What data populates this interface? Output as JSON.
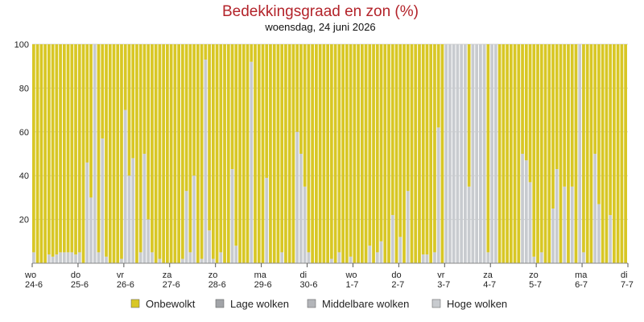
{
  "colors": {
    "clear": "#d8c725",
    "low": "#a2a4a8",
    "mid": "#b3b5b9",
    "high": "#c8cbcf",
    "title": "#b3232a",
    "grid": "#d0d0d0"
  },
  "chart_data": {
    "type": "bar",
    "stacked": true,
    "title": "Bedekkingsgraad en zon (%)",
    "subtitle": "woensdag, 24 juni 2026",
    "ylim": [
      0,
      100
    ],
    "yticks": [
      20,
      40,
      60,
      80,
      100
    ],
    "x_tick_labels": [
      {
        "index": 0,
        "day": "wo",
        "date": "24-6"
      },
      {
        "index": 12,
        "day": "do",
        "date": "25-6"
      },
      {
        "index": 24,
        "day": "vr",
        "date": "26-6"
      },
      {
        "index": 36,
        "day": "za",
        "date": "27-6"
      },
      {
        "index": 48,
        "day": "zo",
        "date": "28-6"
      },
      {
        "index": 60,
        "day": "ma",
        "date": "29-6"
      },
      {
        "index": 72,
        "day": "di",
        "date": "30-6"
      },
      {
        "index": 84,
        "day": "wo",
        "date": "1-7"
      },
      {
        "index": 96,
        "day": "do",
        "date": "2-7"
      },
      {
        "index": 108,
        "day": "vr",
        "date": "3-7"
      },
      {
        "index": 120,
        "day": "za",
        "date": "4-7"
      },
      {
        "index": 132,
        "day": "zo",
        "date": "5-7"
      },
      {
        "index": 144,
        "day": "ma",
        "date": "6-7"
      },
      {
        "index": 156,
        "day": "di",
        "date": "7-7"
      }
    ],
    "legend": [
      "Onbewolkt",
      "Lage wolken",
      "Middelbare wolken",
      "Hoge wolken"
    ],
    "series": [
      {
        "name": "Hoge wolken",
        "values": [
          5,
          0,
          0,
          0,
          4,
          3,
          4,
          5,
          5,
          5,
          5,
          4,
          5,
          0,
          46,
          30,
          100,
          5,
          57,
          3,
          0,
          0,
          0,
          2,
          70,
          40,
          48,
          0,
          5,
          50,
          20,
          5,
          0,
          2,
          0,
          0,
          0,
          0,
          0,
          2,
          33,
          5,
          40,
          0,
          2,
          93,
          15,
          2,
          0,
          5,
          0,
          0,
          43,
          8,
          0,
          0,
          0,
          92,
          0,
          0,
          0,
          39,
          0,
          0,
          0,
          5,
          0,
          0,
          0,
          60,
          50,
          35,
          5,
          0,
          0,
          0,
          0,
          0,
          2,
          0,
          5,
          0,
          0,
          3,
          0,
          0,
          0,
          0,
          8,
          0,
          5,
          10,
          0,
          0,
          22,
          0,
          12,
          0,
          33,
          0,
          0,
          0,
          4,
          4,
          0,
          5,
          62,
          0,
          100,
          100,
          100,
          100,
          100,
          100,
          35,
          100,
          100,
          100,
          100,
          5,
          100,
          100,
          0,
          0,
          0,
          0,
          0,
          0,
          50,
          47,
          37,
          3,
          0,
          5,
          0,
          0,
          25,
          43,
          0,
          35,
          0,
          35,
          0,
          100,
          5,
          0,
          0,
          50,
          27,
          0,
          0,
          22,
          0,
          0,
          0,
          0
        ]
      },
      {
        "name": "Middelbare wolken",
        "values": [
          0,
          0,
          0,
          0,
          0,
          0,
          0,
          0,
          0,
          0,
          0,
          0,
          0,
          0,
          0,
          0,
          0,
          0,
          0,
          0,
          0,
          0,
          0,
          0,
          0,
          0,
          0,
          0,
          0,
          0,
          0,
          0,
          0,
          0,
          0,
          0,
          0,
          0,
          0,
          0,
          0,
          0,
          0,
          0,
          0,
          0,
          0,
          0,
          0,
          0,
          0,
          0,
          0,
          0,
          0,
          0,
          0,
          0,
          0,
          0,
          0,
          0,
          0,
          0,
          0,
          0,
          0,
          0,
          0,
          0,
          0,
          0,
          0,
          0,
          0,
          0,
          0,
          0,
          0,
          0,
          0,
          0,
          0,
          0,
          0,
          0,
          0,
          0,
          0,
          0,
          0,
          0,
          0,
          0,
          0,
          0,
          0,
          0,
          0,
          0,
          0,
          0,
          0,
          0,
          0,
          0,
          0,
          0,
          0,
          0,
          0,
          0,
          0,
          0,
          0,
          0,
          0,
          0,
          0,
          0,
          0,
          0,
          0,
          0,
          0,
          0,
          0,
          0,
          0,
          0,
          0,
          0,
          0,
          0,
          0,
          0,
          0,
          0,
          0,
          0,
          0,
          0,
          0,
          0,
          0,
          0,
          0,
          0,
          0,
          0,
          0,
          0,
          0,
          0,
          0,
          0
        ]
      },
      {
        "name": "Lage wolken",
        "values": [
          0,
          0,
          0,
          0,
          0,
          0,
          0,
          0,
          0,
          0,
          0,
          0,
          0,
          0,
          0,
          0,
          0,
          0,
          0,
          0,
          0,
          0,
          0,
          0,
          0,
          0,
          0,
          0,
          0,
          0,
          0,
          0,
          0,
          0,
          0,
          0,
          0,
          0,
          0,
          0,
          0,
          0,
          0,
          0,
          0,
          0,
          0,
          0,
          0,
          0,
          0,
          0,
          0,
          0,
          0,
          0,
          0,
          0,
          0,
          0,
          0,
          0,
          0,
          0,
          0,
          0,
          0,
          0,
          0,
          0,
          0,
          0,
          0,
          0,
          0,
          0,
          0,
          0,
          0,
          0,
          0,
          0,
          0,
          0,
          0,
          0,
          0,
          0,
          0,
          0,
          0,
          0,
          0,
          0,
          0,
          0,
          0,
          0,
          0,
          0,
          0,
          0,
          0,
          0,
          0,
          0,
          0,
          0,
          0,
          0,
          0,
          0,
          0,
          0,
          0,
          0,
          0,
          0,
          0,
          0,
          0,
          0,
          0,
          0,
          0,
          0,
          0,
          0,
          0,
          0,
          0,
          0,
          0,
          0,
          0,
          0,
          0,
          0,
          0,
          0,
          0,
          0,
          0,
          0,
          0,
          0,
          0,
          0,
          0,
          0,
          0,
          0,
          0,
          0,
          0,
          0
        ]
      },
      {
        "name": "Onbewolkt",
        "values": [
          95,
          100,
          100,
          100,
          96,
          97,
          96,
          95,
          95,
          95,
          95,
          96,
          95,
          100,
          54,
          70,
          0,
          95,
          43,
          97,
          100,
          100,
          100,
          98,
          30,
          60,
          52,
          100,
          95,
          50,
          80,
          95,
          100,
          98,
          100,
          100,
          100,
          100,
          100,
          98,
          67,
          95,
          60,
          100,
          98,
          7,
          85,
          98,
          100,
          95,
          100,
          100,
          57,
          92,
          100,
          100,
          100,
          8,
          100,
          100,
          100,
          61,
          100,
          100,
          100,
          95,
          100,
          100,
          100,
          40,
          50,
          65,
          95,
          100,
          100,
          100,
          100,
          100,
          98,
          100,
          95,
          100,
          100,
          97,
          100,
          100,
          100,
          100,
          92,
          100,
          95,
          90,
          100,
          100,
          78,
          100,
          88,
          100,
          67,
          100,
          100,
          100,
          96,
          96,
          100,
          95,
          38,
          100,
          0,
          0,
          0,
          0,
          0,
          0,
          65,
          0,
          0,
          0,
          0,
          95,
          0,
          0,
          100,
          100,
          100,
          100,
          100,
          100,
          50,
          53,
          63,
          97,
          100,
          95,
          100,
          100,
          75,
          57,
          100,
          65,
          100,
          65,
          100,
          0,
          95,
          100,
          100,
          50,
          73,
          100,
          100,
          78,
          100,
          100,
          100,
          100
        ]
      }
    ]
  }
}
